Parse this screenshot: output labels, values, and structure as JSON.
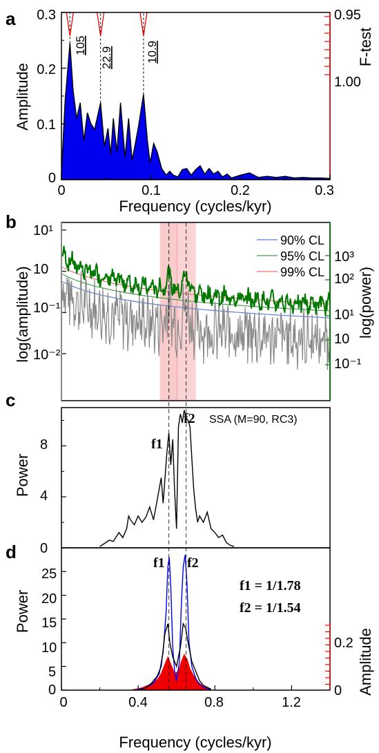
{
  "colors": {
    "fill_blue": "#0000ee",
    "red": "#ee0000",
    "green": "#007700",
    "gray": "#888888",
    "cl90": "#5a7fe0",
    "cl95": "#4a9a4a",
    "cl99": "#f07070",
    "band": "#f4a0a0"
  },
  "chart_data": [
    {
      "panel": "a",
      "type": "area",
      "xlabel": "Frequency (cycles/kyr)",
      "ylabel": "Amplitude",
      "ylabel_right": "F-test",
      "xlim": [
        0,
        0.3
      ],
      "ylim": [
        0,
        0.3
      ],
      "xticks": [
        "0",
        "0.1",
        "0.2",
        "0.3"
      ],
      "yticks": [
        "0",
        "0.1",
        "0.2",
        "0.3"
      ],
      "right_ticks": [
        "0.95",
        "1.00"
      ],
      "peak_labels": [
        "105",
        "22.9",
        "10.9"
      ],
      "peak_freqs": [
        0.0095,
        0.0437,
        0.0917
      ],
      "x": [
        0,
        0.004,
        0.0095,
        0.013,
        0.017,
        0.021,
        0.025,
        0.029,
        0.033,
        0.037,
        0.0437,
        0.048,
        0.052,
        0.055,
        0.058,
        0.062,
        0.066,
        0.071,
        0.075,
        0.079,
        0.082,
        0.086,
        0.0917,
        0.096,
        0.099,
        0.103,
        0.107,
        0.112,
        0.117,
        0.121,
        0.125,
        0.13,
        0.135,
        0.14,
        0.145,
        0.15,
        0.155,
        0.16,
        0.165,
        0.17,
        0.175,
        0.18,
        0.185,
        0.19,
        0.2,
        0.21,
        0.22,
        0.23,
        0.24,
        0.25,
        0.26,
        0.27,
        0.28,
        0.29,
        0.3
      ],
      "y": [
        0.01,
        0.14,
        0.245,
        0.16,
        0.11,
        0.138,
        0.07,
        0.12,
        0.1,
        0.09,
        0.138,
        0.06,
        0.092,
        0.045,
        0.11,
        0.05,
        0.138,
        0.04,
        0.11,
        0.035,
        0.06,
        0.095,
        0.153,
        0.07,
        0.03,
        0.065,
        0.05,
        0.02,
        0.008,
        0.015,
        0.008,
        0.005,
        0.018,
        0.02,
        0.008,
        0.018,
        0.025,
        0.01,
        0.02,
        0.01,
        0.015,
        0.005,
        0.01,
        0.003,
        0.008,
        0.012,
        0.004,
        0.006,
        0.004,
        0.006,
        0.003,
        0.004,
        0.003,
        0.003,
        0.002
      ]
    },
    {
      "panel": "b",
      "type": "line",
      "ylabel": "log(amplitude)",
      "ylabel_right": "log(power)",
      "xlim": [
        0,
        1.4
      ],
      "left_ticks": [
        "10¹",
        "10",
        "10⁻¹",
        "10⁻²"
      ],
      "right_ticks": [
        "10³",
        "10²",
        "10¹",
        "10",
        "10⁻¹"
      ],
      "legend": [
        "90% CL",
        "95% CL",
        "99% CL"
      ],
      "legend_position": "top-right",
      "band_centers": [
        0.56,
        0.65
      ],
      "cl_levels": [
        {
          "name": "90% CL",
          "a0": 2.0,
          "a1": 0.05
        },
        {
          "name": "95% CL",
          "a0": 2.3,
          "a1": 0.05
        },
        {
          "name": "99% CL",
          "a0": 2.6,
          "a1": 0.05
        }
      ]
    },
    {
      "panel": "c",
      "type": "line",
      "ylabel": "Power",
      "annotation": "SSA (M=90, RC3)",
      "peaks": [
        "f1",
        "f2"
      ],
      "xlim": [
        0,
        1.4
      ],
      "ylim": [
        0,
        11
      ],
      "yticks": [
        "0",
        "4",
        "8"
      ],
      "x": [
        0.2,
        0.22,
        0.25,
        0.27,
        0.3,
        0.32,
        0.34,
        0.35,
        0.36,
        0.38,
        0.4,
        0.42,
        0.44,
        0.46,
        0.48,
        0.5,
        0.52,
        0.53,
        0.55,
        0.56,
        0.57,
        0.58,
        0.59,
        0.6,
        0.61,
        0.62,
        0.63,
        0.64,
        0.65,
        0.66,
        0.67,
        0.68,
        0.69,
        0.7,
        0.71,
        0.72,
        0.74,
        0.76,
        0.78,
        0.8,
        0.82,
        0.84,
        0.86,
        0.88,
        0.9
      ],
      "y": [
        0.1,
        0.3,
        0.6,
        0.5,
        1.2,
        0.8,
        1.5,
        2.5,
        2.2,
        1.8,
        2.5,
        2.0,
        2.4,
        3.2,
        2.2,
        3.8,
        5.5,
        3.5,
        7.5,
        9.0,
        6.5,
        8.5,
        4.5,
        1.5,
        9.5,
        10.5,
        9.8,
        10.8,
        10.2,
        10.0,
        9.5,
        7.0,
        4.5,
        3.0,
        2.0,
        2.5,
        2.0,
        2.8,
        1.5,
        1.2,
        0.8,
        1.0,
        0.4,
        0.2,
        0.1
      ]
    },
    {
      "panel": "d",
      "type": "line",
      "xlabel": "Frequency (cycles/kyr)",
      "ylabel": "Power",
      "ylabel_right": "Amplitude",
      "xlim": [
        0,
        1.4
      ],
      "ylim": [
        0,
        30
      ],
      "xticks": [
        "0",
        "0.4",
        "0.8",
        "1.2"
      ],
      "yticks": [
        "0",
        "5",
        "10",
        "15",
        "20",
        "25"
      ],
      "right_ticks": [
        "0",
        "0.2"
      ],
      "peaks": [
        "f1",
        "f2"
      ],
      "formula": [
        "f1 = 1/1.78",
        "f2 = 1/1.54"
      ],
      "blue_x": [
        0.38,
        0.44,
        0.48,
        0.51,
        0.53,
        0.545,
        0.555,
        0.562,
        0.57,
        0.58,
        0.59,
        0.6,
        0.615,
        0.625,
        0.635,
        0.645,
        0.655,
        0.665,
        0.68,
        0.7,
        0.72,
        0.74,
        0.78
      ],
      "blue_y": [
        0,
        0.5,
        1.5,
        3.5,
        8,
        16,
        26,
        28,
        22,
        9,
        4,
        2,
        6,
        18,
        26,
        28.5,
        22,
        10,
        5,
        2.5,
        1.2,
        0.6,
        0.1
      ],
      "black_x": [
        0.4,
        0.44,
        0.47,
        0.5,
        0.52,
        0.54,
        0.555,
        0.565,
        0.58,
        0.6,
        0.62,
        0.635,
        0.648,
        0.66,
        0.68,
        0.7,
        0.72,
        0.74,
        0.78
      ],
      "black_y": [
        0,
        0.5,
        1.5,
        3,
        5,
        12,
        14,
        10,
        7,
        5,
        9,
        14,
        13,
        10,
        6,
        4,
        2,
        1,
        0.2
      ],
      "red_x": [
        0.36,
        0.42,
        0.46,
        0.5,
        0.52,
        0.54,
        0.555,
        0.57,
        0.59,
        0.61,
        0.625,
        0.64,
        0.655,
        0.67,
        0.69,
        0.71,
        0.74,
        0.78
      ],
      "red_y": [
        0,
        0.5,
        1.2,
        2.2,
        3.5,
        5.5,
        7,
        5.5,
        3.5,
        4,
        6,
        7.5,
        6.5,
        4.5,
        3,
        1.8,
        0.8,
        0
      ]
    }
  ]
}
